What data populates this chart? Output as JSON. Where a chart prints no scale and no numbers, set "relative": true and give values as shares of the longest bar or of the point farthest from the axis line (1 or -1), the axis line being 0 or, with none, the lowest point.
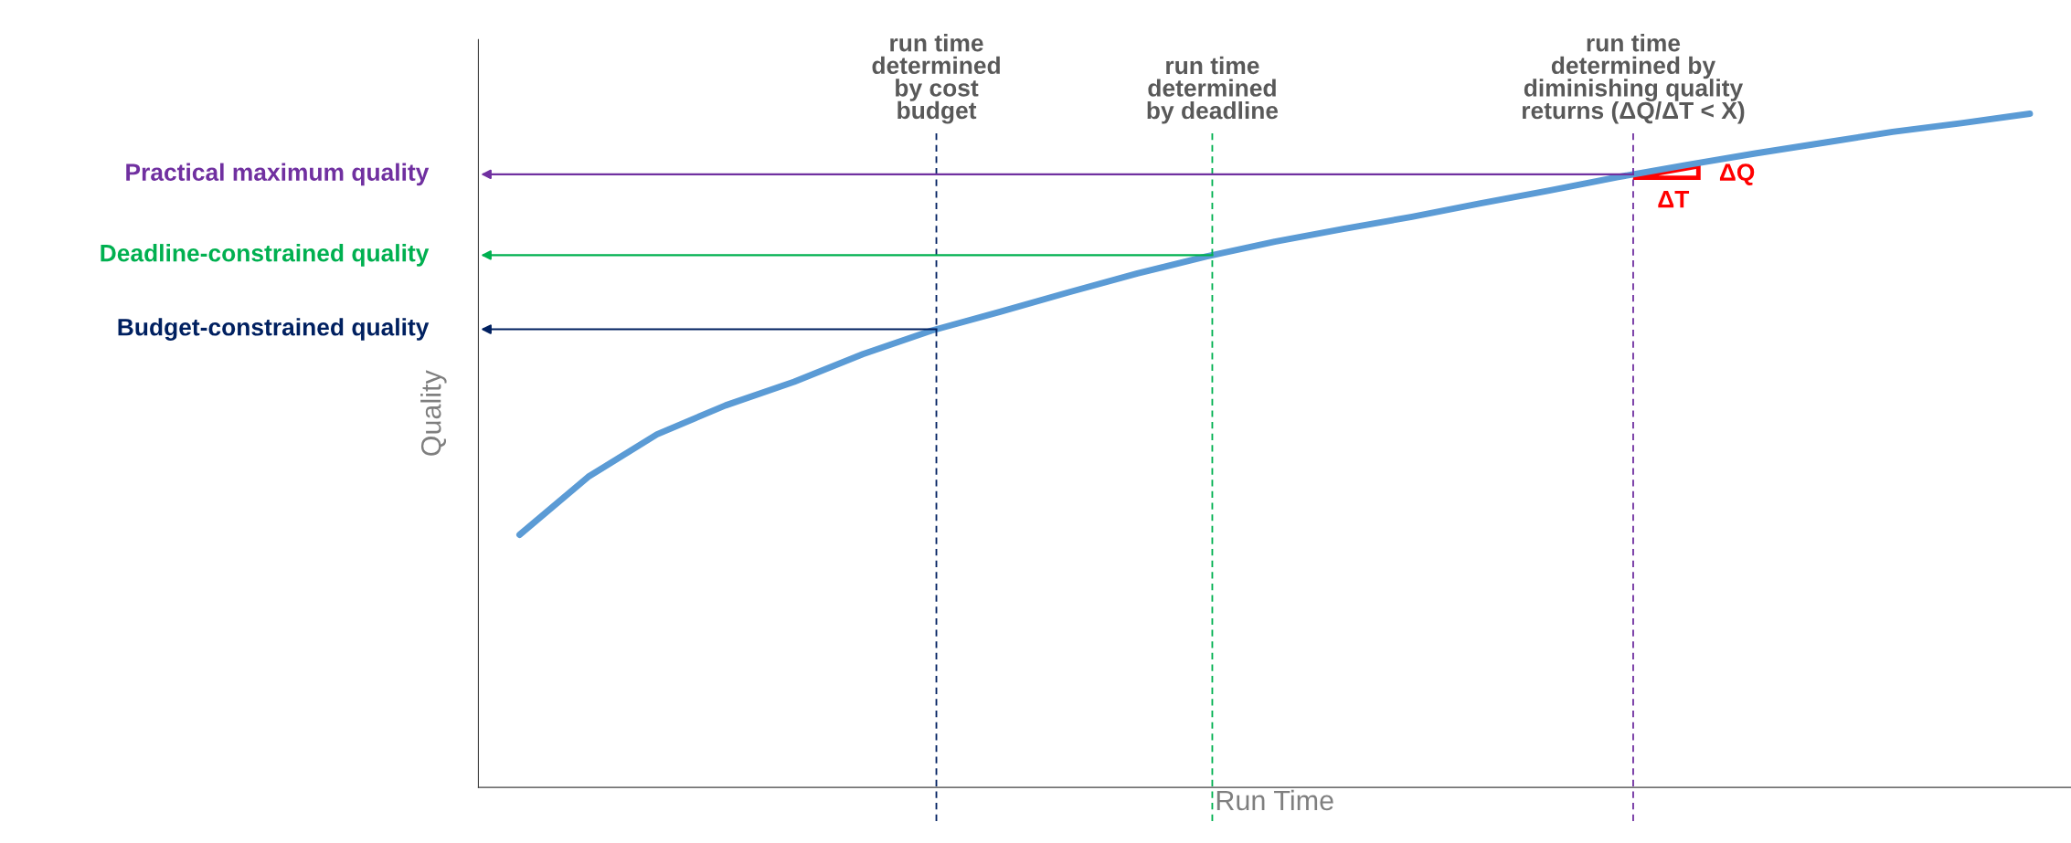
{
  "chart_data": {
    "type": "line",
    "relative": true,
    "xlabel": "Run Time",
    "ylabel": "Quality",
    "categories": [
      null,
      null,
      null,
      null,
      null,
      null,
      null,
      null,
      null,
      null,
      null,
      null,
      null,
      null,
      null,
      null,
      null,
      null,
      null,
      null,
      null,
      null,
      null
    ],
    "series": [
      {
        "color": "#5b9bd5",
        "values": [
          0.375,
          0.461,
          0.524,
          0.567,
          0.602,
          0.643,
          0.678,
          0.706,
          0.735,
          0.763,
          0.788,
          0.81,
          0.829,
          0.847,
          0.867,
          0.886,
          0.906,
          0.924,
          0.941,
          0.957,
          0.973,
          0.986,
          1.0
        ]
      }
    ],
    "ref_lines": [
      {
        "axis": "y",
        "value": 0.68,
        "label": "Budget-constrained quality",
        "color": "#002060"
      },
      {
        "axis": "y",
        "value": 0.79,
        "label": "Deadline-constrained quality",
        "color": "#00b050"
      },
      {
        "axis": "y",
        "value": 0.91,
        "label": "Practical maximum quality",
        "color": "#7030a0"
      }
    ],
    "annotations": [
      "run time\ndetermined\nby cost\nbudget",
      "run time\ndetermined\nby deadline",
      "run time\ndetermined by\ndiminishing quality\nreturns (ΔQ/ΔT < X)",
      "ΔQ",
      "ΔT"
    ],
    "grid": false,
    "marker": "none",
    "line_style": "solid"
  }
}
